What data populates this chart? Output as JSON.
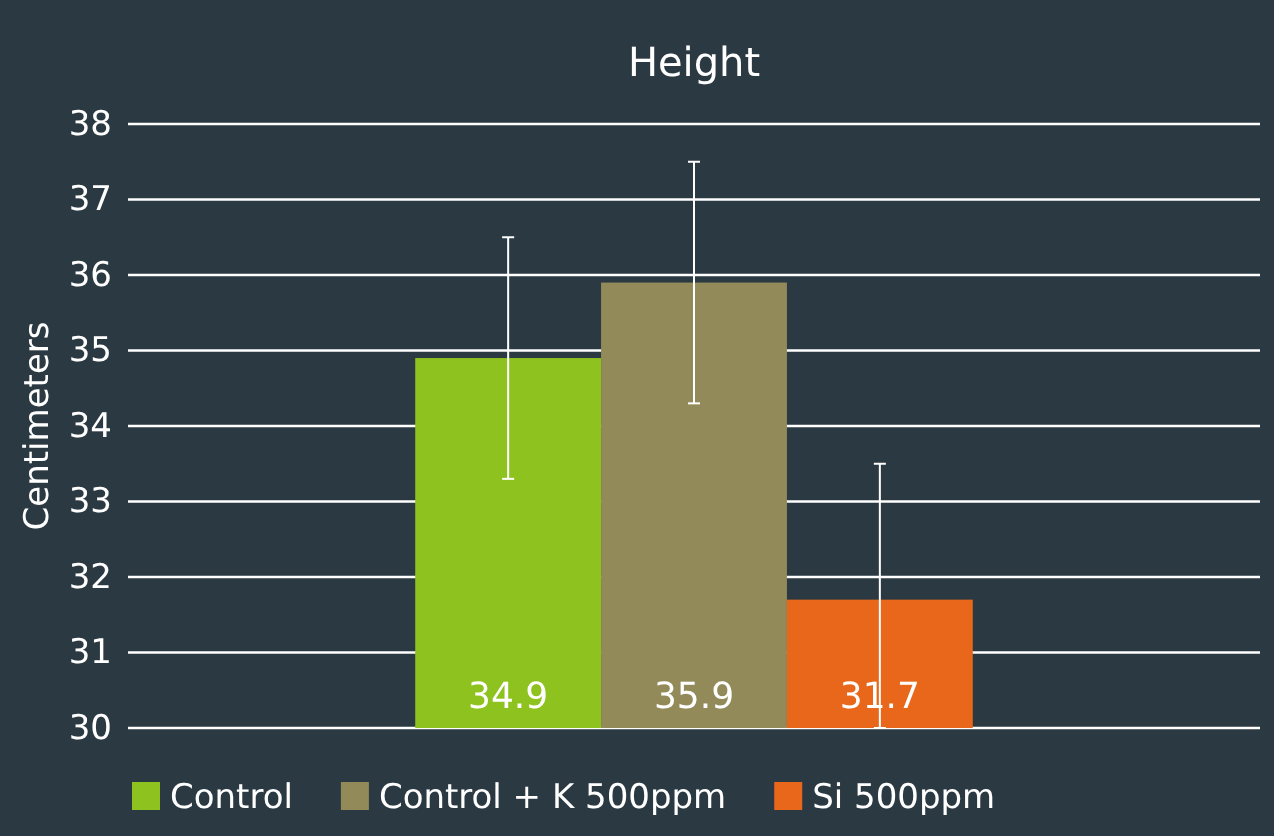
{
  "chart_data": {
    "type": "bar",
    "title": "Height",
    "ylabel": "Centimeters",
    "categories": [
      null
    ],
    "series": [
      {
        "name": "Control",
        "color": "#8dc21f",
        "values": [
          34.9
        ],
        "errors": [
          1.6
        ]
      },
      {
        "name": "Control + K 500ppm",
        "color": "#938a5a",
        "values": [
          35.9
        ],
        "errors": [
          1.6
        ]
      },
      {
        "name": "Si 500ppm",
        "color": "#e8671a",
        "values": [
          31.7
        ],
        "errors": [
          [
            30,
            33.5
          ]
        ]
      }
    ],
    "ylim": [
      30,
      38
    ],
    "yticks": [
      30,
      31,
      32,
      33,
      34,
      35,
      36,
      37,
      38
    ],
    "grid": "y",
    "legend": "bottom",
    "data_labels": true
  }
}
